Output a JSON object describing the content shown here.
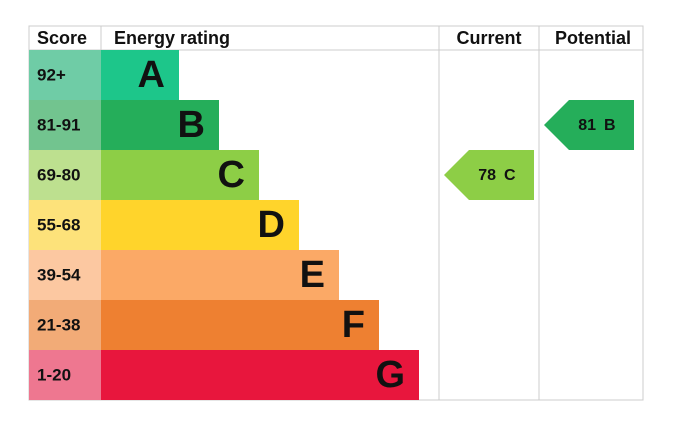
{
  "header": {
    "score": "Score",
    "rating": "Energy rating",
    "current": "Current",
    "potential": "Potential"
  },
  "bands": [
    {
      "range": "92+",
      "letter": "A",
      "color": "#1dc68a",
      "score_color": "#6fcca6"
    },
    {
      "range": "81-91",
      "letter": "B",
      "color": "#25ae5a",
      "score_color": "#72c48f"
    },
    {
      "range": "69-80",
      "letter": "C",
      "color": "#8dce46",
      "score_color": "#bde08f"
    },
    {
      "range": "55-68",
      "letter": "D",
      "color": "#ffd42b",
      "score_color": "#fde27a"
    },
    {
      "range": "39-54",
      "letter": "E",
      "color": "#fba966",
      "score_color": "#fcc8a1"
    },
    {
      "range": "21-38",
      "letter": "F",
      "color": "#ee8031",
      "score_color": "#f2ab77"
    },
    {
      "range": "1-20",
      "letter": "G",
      "color": "#e8163d",
      "score_color": "#ee7790"
    }
  ],
  "current": {
    "score": "78",
    "rating": "C"
  },
  "potential": {
    "score": "81",
    "rating": "B"
  }
}
